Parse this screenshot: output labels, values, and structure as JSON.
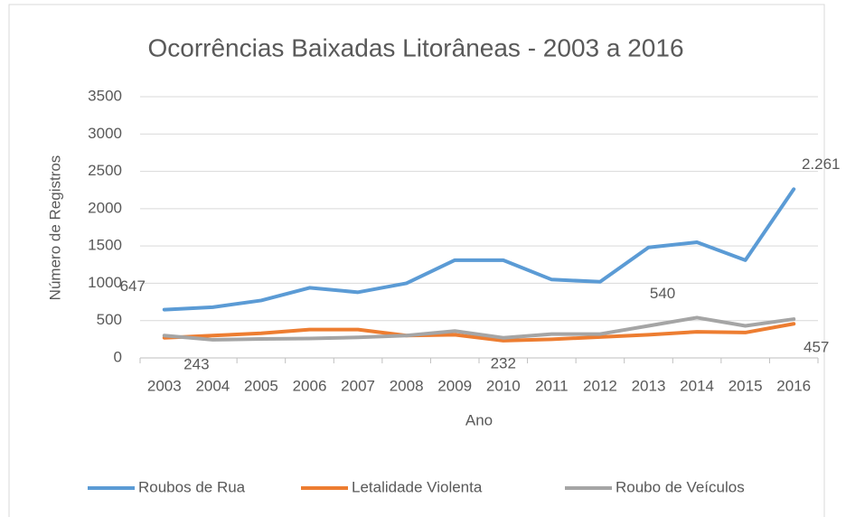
{
  "chart_data": {
    "type": "line",
    "title": "Ocorrências Baixadas Litorâneas - 2003 a 2016",
    "x_label": "Ano",
    "y_label": "Número de Registros",
    "categories": [
      "2003",
      "2004",
      "2005",
      "2006",
      "2007",
      "2008",
      "2009",
      "2010",
      "2011",
      "2012",
      "2013",
      "2014",
      "2015",
      "2016"
    ],
    "series": [
      {
        "name": "Roubos de Rua",
        "color": "#5b9bd5",
        "values": [
          647,
          680,
          770,
          940,
          880,
          1000,
          1310,
          1310,
          1050,
          1020,
          1480,
          1550,
          1310,
          2261
        ],
        "value_labels": [
          "647",
          null,
          null,
          null,
          null,
          null,
          null,
          null,
          null,
          null,
          null,
          null,
          null,
          "2.261"
        ]
      },
      {
        "name": "Letalidade Violenta",
        "color": "#ed7d31",
        "values": [
          270,
          300,
          330,
          380,
          380,
          300,
          310,
          232,
          250,
          280,
          310,
          350,
          340,
          457
        ],
        "value_labels": [
          null,
          null,
          null,
          null,
          null,
          null,
          null,
          "232",
          null,
          null,
          null,
          null,
          null,
          "457"
        ]
      },
      {
        "name": "Roubo de Veículos",
        "color": "#a5a5a5",
        "values": [
          300,
          243,
          255,
          260,
          275,
          300,
          360,
          270,
          320,
          320,
          430,
          540,
          430,
          520
        ],
        "value_labels": [
          null,
          "243",
          null,
          null,
          null,
          null,
          null,
          null,
          null,
          null,
          null,
          "540",
          null,
          null
        ]
      }
    ],
    "ylim": [
      0,
      3500
    ],
    "yticks": [
      0,
      500,
      1000,
      1500,
      2000,
      2500,
      3000,
      3500
    ],
    "grid": true,
    "legend": "bottom"
  }
}
